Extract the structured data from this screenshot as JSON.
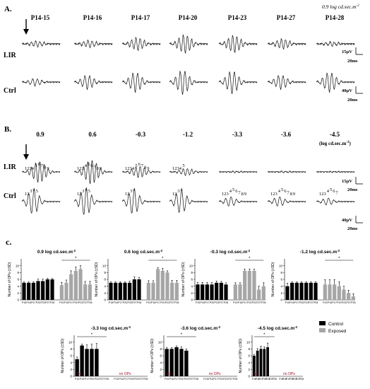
{
  "panel_a": {
    "label": "A.",
    "intensity_note": "0.9 log cd.sec.m",
    "intensity_exp": "-2",
    "ages": [
      "P14-15",
      "P14-16",
      "P14-17",
      "P14-20",
      "P14-23",
      "P14-27",
      "P14-28"
    ],
    "row_labels": [
      "LIR",
      "Ctrl"
    ],
    "lir_scale": {
      "amplitude": "15µV",
      "time": "20ms"
    },
    "ctrl_scale": {
      "amplitude": "40µV",
      "time": "20ms"
    }
  },
  "panel_b": {
    "label": "B.",
    "intensities": [
      "0.9",
      "0.6",
      "-0.3",
      "-1.2",
      "-3.3",
      "-3.6",
      "-4.5"
    ],
    "unit_note": "(log cd.sec.m",
    "unit_exp": "-2",
    "unit_close": ")",
    "row_labels": [
      "LIR",
      "Ctrl"
    ],
    "lir_scale": {
      "amplitude": "15µV",
      "time": "20ms"
    },
    "ctrl_scale": {
      "amplitude": "40µV",
      "time": "20ms"
    },
    "lir_op_labels": [
      {
        "base": "1234",
        "nums": [
          "5",
          "6",
          "7",
          "8",
          "9"
        ]
      },
      {
        "base": "123",
        "nums": [
          "4",
          "5",
          "6",
          "7",
          "8",
          "9"
        ]
      },
      {
        "base": "1234",
        "nums": [
          "5",
          "6",
          "7",
          "8",
          "9"
        ]
      },
      {
        "base": "1234",
        "nums": [
          "5"
        ]
      },
      {
        "base": "",
        "nums": []
      },
      {
        "base": "",
        "nums": []
      },
      {
        "base": "",
        "nums": []
      }
    ],
    "ctrl_op_labels": [
      {
        "base": "12",
        "nums": [
          "3",
          "4",
          "5"
        ]
      },
      {
        "base": "12",
        "nums": [
          "3",
          "4",
          "5"
        ]
      },
      {
        "base": "12",
        "nums": [
          "3",
          "4"
        ]
      },
      {
        "base": "12",
        "nums": [
          "3",
          "4"
        ]
      },
      {
        "base": "123",
        "nums": [
          "4",
          "5",
          "6",
          "7",
          "8",
          "9"
        ]
      },
      {
        "base": "123",
        "nums": [
          "4",
          "5",
          "6",
          "7",
          "8",
          "9"
        ]
      },
      {
        "base": "123",
        "nums": [
          "4",
          "5",
          "6",
          "7"
        ]
      }
    ]
  },
  "panel_c": {
    "label": "c.",
    "legend": [
      {
        "name": "Control",
        "color": "#000000"
      },
      {
        "name": "Exposed",
        "color": "#a6a6a6"
      }
    ],
    "no_ops_label": "no OPs",
    "no_label": "no",
    "ylabel": "Number of OPs (±SD)",
    "x_ticks": [
      "P15",
      "P16",
      "P17",
      "P20",
      "P23",
      "P27",
      "P28"
    ]
  },
  "chart_data": [
    {
      "type": "bar",
      "title": "0.9 log cd.sec.m",
      "title_exp": "-2",
      "ylabel": "Number of OPs (±SD)",
      "ylim": [
        0,
        12
      ],
      "yticks": [
        0,
        2,
        4,
        6,
        8,
        10
      ],
      "categories": [
        "P15",
        "P16",
        "P17",
        "P20",
        "P23",
        "P27",
        "P28"
      ],
      "series": [
        {
          "name": "Control",
          "values": [
            5,
            5,
            5,
            5.5,
            5.5,
            6,
            6
          ],
          "err": [
            0.3,
            0.3,
            0.3,
            0.6,
            0.6,
            0.3,
            0.3
          ]
        },
        {
          "name": "Exposed",
          "values": [
            4.3,
            5,
            7.5,
            8.5,
            9,
            4.5,
            4.5
          ],
          "err": [
            0.8,
            0.8,
            1.0,
            1.1,
            1.0,
            0.9,
            0.9
          ]
        }
      ],
      "significance": true
    },
    {
      "type": "bar",
      "title": "0.6 log cd.sec.m",
      "title_exp": "-2",
      "ylabel": "Number of OPs (±SD)",
      "ylim": [
        0,
        12
      ],
      "yticks": [
        0,
        2,
        4,
        6,
        8,
        10
      ],
      "categories": [
        "P15",
        "P16",
        "P17",
        "P20",
        "P23",
        "P27",
        "P28"
      ],
      "series": [
        {
          "name": "Control",
          "values": [
            5,
            5,
            5,
            5,
            5,
            6,
            6
          ],
          "err": [
            0.3,
            0.3,
            0.3,
            0.3,
            0.5,
            0.7,
            0.6
          ]
        },
        {
          "name": "Exposed",
          "values": [
            5,
            5,
            9,
            8.5,
            8,
            5,
            5
          ],
          "err": [
            0.6,
            0.6,
            0.4,
            0.7,
            0.5,
            0.7,
            0.7
          ]
        }
      ],
      "significance": true
    },
    {
      "type": "bar",
      "title": "-0.3 log cd.sec.m",
      "title_exp": "-2",
      "ylabel": "Number of OPs (±SD)",
      "ylim": [
        0,
        12
      ],
      "yticks": [
        0,
        2,
        4,
        6,
        8,
        10
      ],
      "categories": [
        "P15",
        "P16",
        "P17",
        "P20",
        "P23",
        "P27",
        "P28"
      ],
      "series": [
        {
          "name": "Control",
          "values": [
            4.5,
            4.5,
            4.5,
            4.5,
            5,
            5,
            4.5
          ],
          "err": [
            0.6,
            0.6,
            0.6,
            0.6,
            0.5,
            0.4,
            0.5
          ]
        },
        {
          "name": "Exposed",
          "values": [
            4.5,
            4.5,
            8.5,
            8.5,
            8.5,
            3,
            4
          ],
          "err": [
            0.5,
            0.5,
            0.5,
            0.5,
            0.5,
            1.0,
            1.0
          ]
        }
      ],
      "significance": true
    },
    {
      "type": "bar",
      "title": "-1.2 log cd.sec.m",
      "title_exp": "-2",
      "ylabel": "Number of OPs (±SD)",
      "ylim": [
        0,
        12
      ],
      "yticks": [
        0,
        2,
        4,
        6,
        8,
        10
      ],
      "categories": [
        "P15",
        "P16",
        "P17",
        "P20",
        "P23",
        "P27",
        "P28"
      ],
      "series": [
        {
          "name": "Control",
          "values": [
            4,
            5,
            5,
            5,
            5,
            5,
            5
          ],
          "err": [
            0.9,
            0.3,
            0.3,
            0.3,
            0.3,
            0.3,
            0.3
          ]
        },
        {
          "name": "Exposed",
          "values": [
            4.5,
            4.5,
            4.5,
            4,
            3,
            2,
            1
          ],
          "err": [
            1.4,
            1.4,
            1.4,
            1.3,
            1.0,
            0.8,
            0.8
          ]
        }
      ],
      "significance": true
    },
    {
      "type": "bar",
      "title": "-3.3 log cd.sec.m",
      "title_exp": "-2",
      "ylabel": "Number of OPs (±SD)",
      "ylim": [
        0,
        12
      ],
      "yticks": [
        0,
        2,
        4,
        6,
        8,
        10
      ],
      "categories": [
        "P15",
        "P16",
        "P17",
        "P20",
        "P23",
        "P27",
        "P28"
      ],
      "series": [
        {
          "name": "Control",
          "values": [
            5,
            9,
            8,
            8,
            8,
            0,
            0
          ],
          "err": [
            0.6,
            0.4,
            1.2,
            1.4,
            1.6,
            0,
            0
          ]
        },
        {
          "name": "Exposed",
          "values": [
            0,
            0,
            0,
            0,
            0,
            0,
            0
          ],
          "err": [
            0,
            0,
            0,
            0,
            0,
            0,
            0
          ]
        }
      ],
      "significance": true,
      "annotations": [
        "no",
        "no OPs"
      ]
    },
    {
      "type": "bar",
      "title": "-3.6 log cd.sec.m",
      "title_exp": "-2",
      "ylabel": "Number of OPs (±SD)",
      "ylim": [
        0,
        12
      ],
      "yticks": [
        0,
        2,
        4,
        6,
        8,
        10
      ],
      "categories": [
        "P15",
        "P16",
        "P17",
        "P20",
        "P23",
        "P27",
        "P28"
      ],
      "series": [
        {
          "name": "Control",
          "values": [
            8,
            8,
            8.5,
            8,
            7.5,
            0,
            0
          ],
          "err": [
            0.4,
            0.4,
            0.4,
            0.6,
            0.5,
            0,
            0
          ]
        },
        {
          "name": "Exposed",
          "values": [
            0,
            0,
            0,
            0,
            0,
            0,
            0
          ],
          "err": [
            0,
            0,
            0,
            0,
            0,
            0,
            0
          ]
        }
      ],
      "significance": true,
      "annotations": [
        "no",
        "no OPs"
      ]
    },
    {
      "type": "bar",
      "title": "-4.5 log cd.sec.m",
      "title_exp": "-2",
      "ylabel": "Number of OPs (±SD)",
      "ylim": [
        0,
        12
      ],
      "yticks": [
        0,
        2,
        4,
        6,
        8,
        10
      ],
      "categories": [
        "P15",
        "P16",
        "P17",
        "P20",
        "P23",
        "P27",
        "P28"
      ],
      "series": [
        {
          "name": "Control",
          "values": [
            6,
            7.5,
            8,
            8,
            8.5,
            0,
            0
          ],
          "err": [
            0.4,
            0.6,
            0.8,
            0.6,
            1.2,
            0,
            0
          ]
        },
        {
          "name": "Exposed",
          "values": [
            0,
            0,
            0,
            0,
            0,
            0,
            0
          ],
          "err": [
            0,
            0,
            0,
            0,
            0,
            0,
            0
          ]
        }
      ],
      "significance": true,
      "annotations": [
        "no",
        "no OPs"
      ]
    }
  ]
}
